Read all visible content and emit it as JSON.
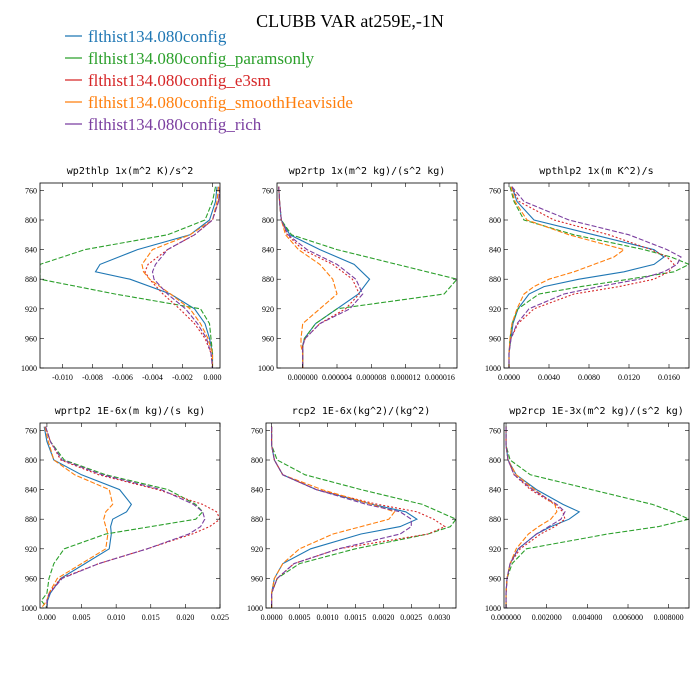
{
  "figure": {
    "title": "CLUBB VAR at259E,-1N"
  },
  "legend": [
    {
      "label": "flthist134.080config",
      "color": "#1f77b4"
    },
    {
      "label": "flthist134.080config_paramsonly",
      "color": "#2ca02c"
    },
    {
      "label": "flthist134.080config_e3sm",
      "color": "#d62728"
    },
    {
      "label": "flthist134.080config_smoothHeaviside",
      "color": "#ff7f0e"
    },
    {
      "label": "flthist134.080config_rich",
      "color": "#7b3fa0"
    }
  ],
  "chart_data": [
    {
      "type": "line",
      "title": "wp2thlp  1x(m^2 K)/s^2",
      "xlim": [
        -0.0115,
        0.0005
      ],
      "ylim": [
        1000,
        750
      ],
      "xticks": [
        -0.01,
        -0.008,
        -0.006,
        -0.004,
        -0.002,
        0.0
      ],
      "xticklabels": [
        "-0.010",
        "-0.008",
        "-0.006",
        "-0.004",
        "-0.002",
        "0.000"
      ],
      "yticks": [
        760,
        800,
        840,
        880,
        920,
        960,
        1000
      ],
      "y": [
        755,
        775,
        800,
        820,
        840,
        860,
        870,
        880,
        900,
        920,
        940,
        960,
        980,
        1000
      ],
      "series": [
        {
          "name": "flthist134.080config",
          "color": "#1f77b4",
          "dash": "solid",
          "x": [
            0.0003,
            0.0002,
            -0.0002,
            -0.0015,
            -0.005,
            -0.0075,
            -0.0078,
            -0.0055,
            -0.0028,
            -0.0012,
            -0.0005,
            -0.0002,
            0.0,
            0.0
          ]
        },
        {
          "name": "flthist134.080config_paramsonly",
          "color": "#2ca02c",
          "dash": "5,2",
          "x": [
            0.0002,
            0.0,
            -0.0005,
            -0.003,
            -0.0085,
            -0.0115,
            -0.0115,
            -0.0115,
            -0.0065,
            -0.0008,
            -0.0002,
            -0.0001,
            0.0,
            0.0
          ]
        },
        {
          "name": "flthist134.080config_e3sm",
          "color": "#d62728",
          "dash": "2,2",
          "x": [
            0.0005,
            0.0004,
            0.0,
            -0.0012,
            -0.003,
            -0.0043,
            -0.0045,
            -0.0042,
            -0.0033,
            -0.0022,
            -0.0012,
            -0.0005,
            -0.0001,
            0.0
          ]
        },
        {
          "name": "flthist134.080config_smoothHeaviside",
          "color": "#ff7f0e",
          "dash": "5,2",
          "x": [
            0.0004,
            0.0003,
            0.0,
            -0.0015,
            -0.004,
            -0.0047,
            -0.0046,
            -0.0042,
            -0.0028,
            -0.0015,
            -0.0008,
            -0.0003,
            0.0,
            0.0
          ]
        },
        {
          "name": "flthist134.080config_rich",
          "color": "#7b3fa0",
          "dash": "5,2",
          "x": [
            0.0005,
            0.0004,
            0.0,
            -0.0012,
            -0.003,
            -0.0038,
            -0.004,
            -0.0039,
            -0.003,
            -0.0018,
            -0.001,
            -0.0004,
            -0.0001,
            0.0
          ]
        }
      ]
    },
    {
      "type": "line",
      "title": "wp2rtp  1x(m^2 kg)/(s^2 kg)",
      "xlim": [
        -3e-06,
        1.8e-05
      ],
      "ylim": [
        1000,
        750
      ],
      "xticks": [
        0.0,
        4e-06,
        8e-06,
        1.2e-05,
        1.6e-05
      ],
      "xticklabels": [
        "0.000000",
        "0.000004",
        "0.000008",
        "0.000012",
        "0.000016"
      ],
      "yticks": [
        760,
        800,
        840,
        880,
        920,
        960,
        1000
      ],
      "y": [
        755,
        775,
        800,
        820,
        840,
        860,
        880,
        900,
        920,
        940,
        960,
        970,
        980,
        990,
        1000
      ],
      "series": [
        {
          "name": "flthist134.080config",
          "color": "#1f77b4",
          "dash": "solid",
          "x": [
            -2.8e-06,
            -2.7e-06,
            -2.5e-06,
            -1.5e-06,
            2e-06,
            6e-06,
            7.8e-06,
            6.5e-06,
            4e-06,
            1.5e-06,
            2e-07,
            0.0,
            0.0,
            0.0,
            0.0
          ]
        },
        {
          "name": "flthist134.080config_paramsonly",
          "color": "#2ca02c",
          "dash": "5,2",
          "x": [
            -2.8e-06,
            -2.7e-06,
            -2.5e-06,
            -1.3e-06,
            4e-06,
            1.1e-05,
            1.8e-05,
            1.65e-05,
            4e-06,
            1.5e-06,
            2e-07,
            0.0,
            0.0,
            0.0,
            0.0
          ]
        },
        {
          "name": "flthist134.080config_e3sm",
          "color": "#d62728",
          "dash": "2,2",
          "x": [
            -2.8e-06,
            -2.7e-06,
            -2.5e-06,
            -1.8e-06,
            0.0,
            3.5e-06,
            5.8e-06,
            6.6e-06,
            5e-06,
            2e-06,
            3e-07,
            0.0,
            0.0,
            0.0,
            0.0
          ]
        },
        {
          "name": "flthist134.080config_smoothHeaviside",
          "color": "#ff7f0e",
          "dash": "5,2",
          "x": [
            -2.8e-06,
            -2.7e-06,
            -2.5e-06,
            -2e-06,
            -5e-07,
            2e-06,
            3.5e-06,
            4e-06,
            2e-06,
            0.0,
            -2e-07,
            -2e-07,
            0.0,
            0.0,
            0.0
          ]
        },
        {
          "name": "flthist134.080config_rich",
          "color": "#7b3fa0",
          "dash": "5,2",
          "x": [
            -2.8e-06,
            -2.7e-06,
            -2.5e-06,
            -1.7e-06,
            5e-07,
            4e-06,
            6.2e-06,
            7e-06,
            5.5e-06,
            2e-06,
            3e-07,
            0.0,
            0.0,
            0.0,
            0.0
          ]
        }
      ]
    },
    {
      "type": "line",
      "title": "wpthlp2  1x(m K^2)/s",
      "xlim": [
        -0.0005,
        0.018
      ],
      "ylim": [
        1000,
        750
      ],
      "xticks": [
        0.0,
        0.004,
        0.008,
        0.012,
        0.016
      ],
      "xticklabels": [
        "0.0000",
        "0.0040",
        "0.0080",
        "0.0120",
        "0.0160"
      ],
      "yticks": [
        760,
        800,
        840,
        880,
        920,
        960,
        1000
      ],
      "y": [
        755,
        775,
        800,
        820,
        840,
        850,
        860,
        870,
        880,
        890,
        900,
        920,
        940,
        960,
        980,
        1000
      ],
      "series": [
        {
          "name": "flthist134.080config",
          "color": "#1f77b4",
          "dash": "solid",
          "x": [
            0.0003,
            0.0008,
            0.0025,
            0.0085,
            0.0145,
            0.0155,
            0.0145,
            0.0115,
            0.007,
            0.0035,
            0.002,
            0.0009,
            0.0004,
            0.0002,
            0.0,
            0.0
          ]
        },
        {
          "name": "flthist134.080config_paramsonly",
          "color": "#2ca02c",
          "dash": "5,2",
          "x": [
            0.0001,
            0.0005,
            0.0015,
            0.0065,
            0.0135,
            0.0162,
            0.018,
            0.0165,
            0.012,
            0.0072,
            0.003,
            0.0009,
            0.0003,
            0.0001,
            0.0,
            0.0
          ]
        },
        {
          "name": "flthist134.080config_e3sm",
          "color": "#d62728",
          "dash": "2,2",
          "x": [
            0.0003,
            0.001,
            0.0045,
            0.01,
            0.0142,
            0.0158,
            0.0165,
            0.016,
            0.0145,
            0.011,
            0.0065,
            0.0025,
            0.0009,
            0.0002,
            0.0,
            0.0
          ]
        },
        {
          "name": "flthist134.080config_smoothHeaviside",
          "color": "#ff7f0e",
          "dash": "5,2",
          "x": [
            0.0002,
            0.0006,
            0.0018,
            0.006,
            0.0115,
            0.0105,
            0.0085,
            0.0065,
            0.004,
            0.0025,
            0.0015,
            0.0008,
            0.0003,
            0.0001,
            0.0,
            0.0
          ]
        },
        {
          "name": "flthist134.080config_rich",
          "color": "#7b3fa0",
          "dash": "5,2",
          "x": [
            0.0003,
            0.0015,
            0.006,
            0.012,
            0.0158,
            0.0172,
            0.0168,
            0.0155,
            0.013,
            0.009,
            0.0055,
            0.002,
            0.0008,
            0.0002,
            0.0,
            0.0
          ]
        }
      ]
    },
    {
      "type": "line",
      "title": "wprtp2  1E-6x(m kg)/(s kg)",
      "xlim": [
        -0.001,
        0.025
      ],
      "ylim": [
        1000,
        750
      ],
      "xticks": [
        0.0,
        0.005,
        0.01,
        0.015,
        0.02,
        0.025
      ],
      "xticklabels": [
        "0.000",
        "0.005",
        "0.010",
        "0.015",
        "0.020",
        "0.025"
      ],
      "yticks": [
        760,
        800,
        840,
        880,
        920,
        960,
        1000
      ],
      "y": [
        755,
        775,
        800,
        820,
        840,
        860,
        870,
        880,
        890,
        900,
        920,
        940,
        960,
        980,
        990,
        1000
      ],
      "series": [
        {
          "name": "flthist134.080config",
          "color": "#1f77b4",
          "dash": "solid",
          "x": [
            -0.0004,
            0.0,
            0.001,
            0.005,
            0.0105,
            0.0122,
            0.0115,
            0.0095,
            0.0092,
            0.0093,
            0.009,
            0.0055,
            0.002,
            0.0005,
            0.0001,
            0.0
          ]
        },
        {
          "name": "flthist134.080config_paramsonly",
          "color": "#2ca02c",
          "dash": "5,2",
          "x": [
            -0.0002,
            0.0005,
            0.0025,
            0.0085,
            0.0175,
            0.0215,
            0.0225,
            0.0215,
            0.015,
            0.0085,
            0.0025,
            0.001,
            0.0003,
            0.0,
            -0.0008,
            0.0
          ]
        },
        {
          "name": "flthist134.080config_e3sm",
          "color": "#d62728",
          "dash": "2,2",
          "x": [
            -0.0002,
            0.0005,
            0.002,
            0.0075,
            0.016,
            0.0225,
            0.0245,
            0.025,
            0.0235,
            0.021,
            0.0145,
            0.0075,
            0.002,
            0.0003,
            0.0,
            0.0
          ]
        },
        {
          "name": "flthist134.080config_smoothHeaviside",
          "color": "#ff7f0e",
          "dash": "5,2",
          "x": [
            -0.0003,
            0.0002,
            0.001,
            0.004,
            0.009,
            0.0095,
            0.0085,
            0.0082,
            0.0085,
            0.0088,
            0.0085,
            0.005,
            0.0015,
            0.0003,
            0.0,
            -0.0008
          ]
        },
        {
          "name": "flthist134.080config_rich",
          "color": "#7b3fa0",
          "dash": "5,2",
          "x": [
            -0.0002,
            0.0005,
            0.0022,
            0.008,
            0.0165,
            0.0212,
            0.0225,
            0.0228,
            0.0222,
            0.0205,
            0.0145,
            0.0075,
            0.0022,
            0.0004,
            0.0,
            0.0
          ]
        }
      ]
    },
    {
      "type": "line",
      "title": "rcp2  1E-6x(kg^2)/(kg^2)",
      "xlim": [
        -0.0001,
        0.0033
      ],
      "ylim": [
        1000,
        750
      ],
      "xticks": [
        0.0,
        0.0005,
        0.001,
        0.0015,
        0.002,
        0.0025,
        0.003
      ],
      "xticklabels": [
        "0.0000",
        "0.0005",
        "0.0010",
        "0.0015",
        "0.0020",
        "0.0025",
        "0.0030"
      ],
      "yticks": [
        760,
        800,
        840,
        880,
        920,
        960,
        1000
      ],
      "y": [
        755,
        780,
        800,
        820,
        840,
        860,
        870,
        880,
        890,
        900,
        920,
        940,
        960,
        980,
        1000
      ],
      "series": [
        {
          "name": "flthist134.080config",
          "color": "#1f77b4",
          "dash": "solid",
          "x": [
            0.0,
            0.0,
            5e-05,
            0.0002,
            0.0008,
            0.0018,
            0.0024,
            0.0026,
            0.0023,
            0.0016,
            0.0007,
            0.0002,
            5e-05,
            0.0,
            0.0
          ]
        },
        {
          "name": "flthist134.080config_paramsonly",
          "color": "#2ca02c",
          "dash": "5,2",
          "x": [
            0.0,
            0.0,
            0.0001,
            0.0006,
            0.0016,
            0.0027,
            0.003,
            0.0033,
            0.0032,
            0.0028,
            0.0015,
            0.0005,
            0.0001,
            0.0,
            0.0
          ]
        },
        {
          "name": "flthist134.080config_e3sm",
          "color": "#d62728",
          "dash": "2,2",
          "x": [
            0.0,
            0.0,
            5e-05,
            0.0002,
            0.0008,
            0.0019,
            0.0026,
            0.0029,
            0.0031,
            0.0028,
            0.0012,
            0.0004,
            0.0001,
            0.0,
            0.0
          ]
        },
        {
          "name": "flthist134.080config_smoothHeaviside",
          "color": "#ff7f0e",
          "dash": "5,2",
          "x": [
            0.0,
            0.0,
            5e-05,
            0.0002,
            0.0009,
            0.0018,
            0.0022,
            0.0021,
            0.0016,
            0.0011,
            0.0005,
            0.0002,
            5e-05,
            0.0,
            0.0
          ]
        },
        {
          "name": "flthist134.080config_rich",
          "color": "#7b3fa0",
          "dash": "5,2",
          "x": [
            0.0,
            0.0,
            5e-05,
            0.0002,
            0.0008,
            0.0017,
            0.0023,
            0.0025,
            0.0025,
            0.0023,
            0.0012,
            0.0004,
            0.0001,
            0.0,
            0.0
          ]
        }
      ]
    },
    {
      "type": "line",
      "title": "wp2rcp  1E-3x(m^2 kg)/(s^2 kg)",
      "xlim": [
        -0.0001,
        0.009
      ],
      "ylim": [
        1000,
        750
      ],
      "xticks": [
        0.0,
        0.002,
        0.004,
        0.006,
        0.008
      ],
      "xticklabels": [
        "0.000000",
        "0.002000",
        "0.004000",
        "0.006000",
        "0.008000"
      ],
      "yticks": [
        760,
        800,
        840,
        880,
        920,
        960,
        1000
      ],
      "y": [
        755,
        780,
        800,
        820,
        840,
        860,
        870,
        880,
        890,
        900,
        920,
        940,
        960,
        980,
        1000
      ],
      "series": [
        {
          "name": "flthist134.080config",
          "color": "#1f77b4",
          "dash": "solid",
          "x": [
            0.0,
            0.0,
            0.0001,
            0.0005,
            0.0015,
            0.0028,
            0.0036,
            0.0031,
            0.0022,
            0.0015,
            0.0006,
            0.0002,
            5e-05,
            0.0,
            0.0
          ]
        },
        {
          "name": "flthist134.080config_paramsonly",
          "color": "#2ca02c",
          "dash": "5,2",
          "x": [
            0.0,
            0.0,
            0.0002,
            0.0012,
            0.0042,
            0.0072,
            0.0082,
            0.009,
            0.0075,
            0.005,
            0.001,
            0.0003,
            5e-05,
            0.0,
            0.0
          ]
        },
        {
          "name": "flthist134.080config_e3sm",
          "color": "#d62728",
          "dash": "2,2",
          "x": [
            0.0,
            0.0,
            0.0001,
            0.0004,
            0.0012,
            0.0024,
            0.0028,
            0.0029,
            0.0024,
            0.0017,
            0.0007,
            0.0002,
            5e-05,
            0.0,
            0.0
          ]
        },
        {
          "name": "flthist134.080config_smoothHeaviside",
          "color": "#ff7f0e",
          "dash": "5,2",
          "x": [
            0.0,
            0.0,
            0.0001,
            0.0005,
            0.0014,
            0.0024,
            0.0025,
            0.0022,
            0.0016,
            0.0011,
            0.0005,
            0.0002,
            5e-05,
            0.0,
            0.0
          ]
        },
        {
          "name": "flthist134.080config_rich",
          "color": "#7b3fa0",
          "dash": "5,2",
          "x": [
            0.0,
            0.0,
            0.0001,
            0.0004,
            0.0013,
            0.0025,
            0.0029,
            0.0027,
            0.0021,
            0.0015,
            0.0006,
            0.0002,
            5e-05,
            0.0,
            0.0
          ]
        }
      ]
    }
  ]
}
